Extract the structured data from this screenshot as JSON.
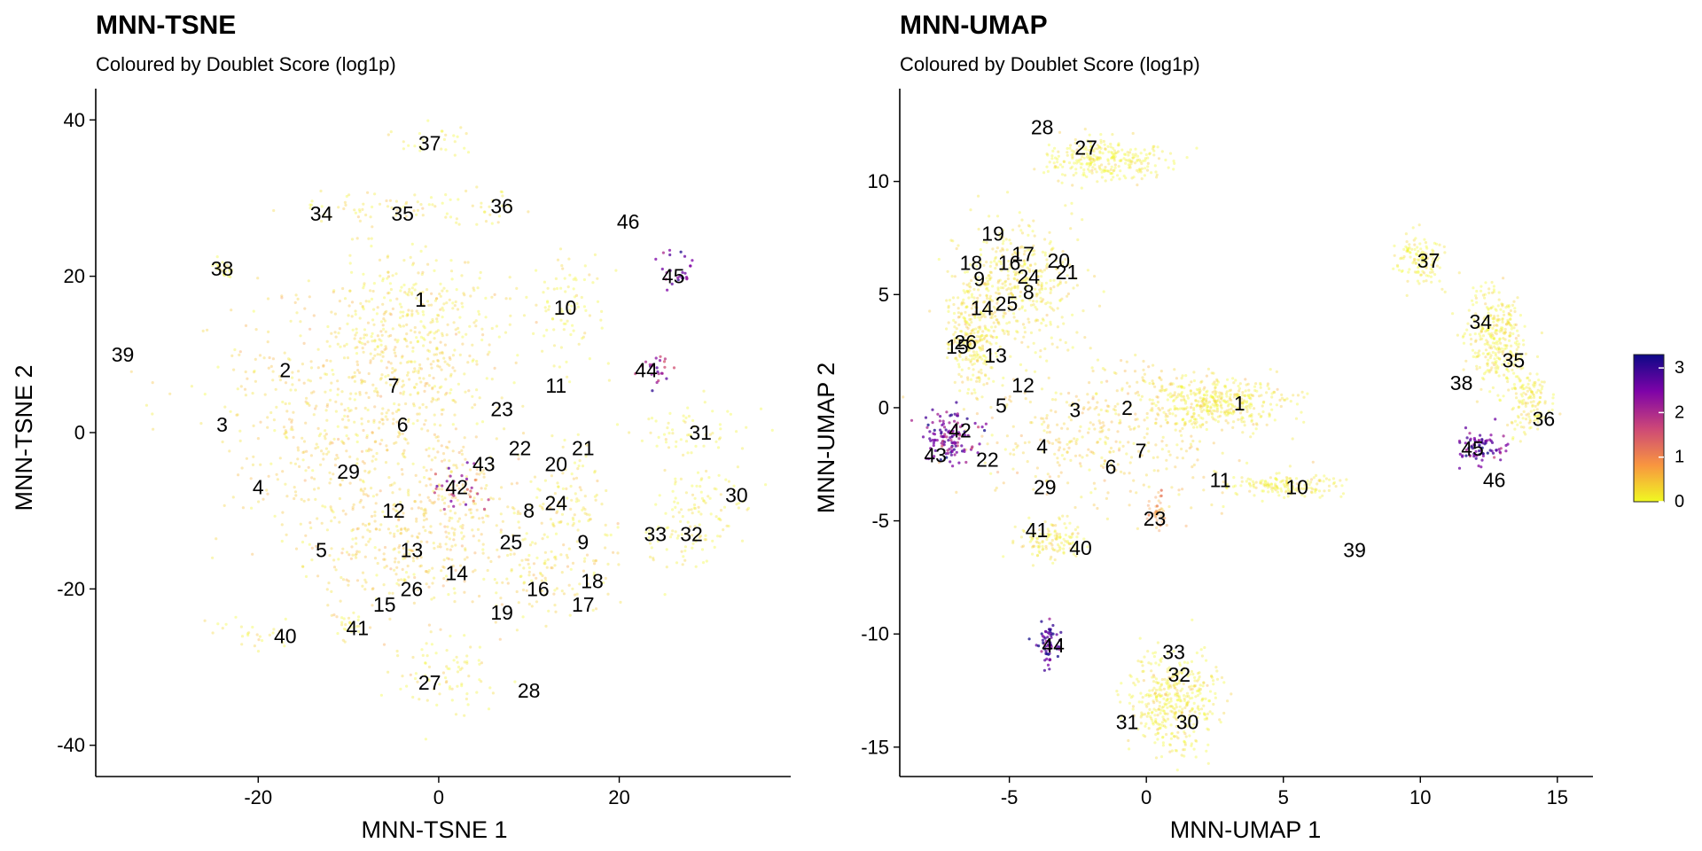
{
  "chart_data": [
    {
      "type": "scatter",
      "title": "MNN-TSNE",
      "subtitle": "Coloured by Doublet Score (log1p)",
      "xlabel": "MNN-TSNE 1",
      "ylabel": "MNN-TSNE 2",
      "xlim": [
        -38,
        39
      ],
      "ylim": [
        -44,
        44
      ],
      "xticks": [
        -20,
        0,
        20
      ],
      "yticks": [
        -40,
        -20,
        0,
        20,
        40
      ],
      "grid": false,
      "regions": [
        {
          "cx": -13,
          "cy": 2,
          "rx": 11,
          "ry": 15,
          "score": 0.35
        },
        {
          "cx": -3,
          "cy": 9,
          "rx": 9,
          "ry": 12,
          "score": 0.3
        },
        {
          "cx": -5,
          "cy": -14,
          "rx": 8,
          "ry": 9,
          "score": 0.4
        },
        {
          "cx": -2,
          "cy": 16,
          "rx": 8,
          "ry": 6,
          "score": 0.1
        },
        {
          "cx": 2,
          "cy": -10,
          "rx": 6,
          "ry": 10,
          "score": 0.4
        },
        {
          "cx": 12,
          "cy": -17,
          "rx": 7,
          "ry": 6,
          "score": 0.3
        },
        {
          "cx": 14,
          "cy": -8,
          "rx": 5,
          "ry": 6,
          "score": 0.2
        },
        {
          "cx": 14,
          "cy": 16,
          "rx": 4,
          "ry": 7,
          "score": 0.15
        },
        {
          "cx": 28,
          "cy": 0,
          "rx": 6,
          "ry": 3,
          "score": 0.05
        },
        {
          "cx": 30,
          "cy": -9,
          "rx": 4,
          "ry": 5,
          "score": 0.1
        },
        {
          "cx": 27,
          "cy": -13,
          "rx": 4,
          "ry": 5,
          "score": 0.1
        },
        {
          "cx": -1,
          "cy": 37,
          "rx": 4,
          "ry": 2,
          "score": 0.1
        },
        {
          "cx": -7,
          "cy": 29,
          "rx": 9,
          "ry": 2,
          "score": 0.2
        },
        {
          "cx": 5,
          "cy": 29,
          "rx": 4,
          "ry": 2,
          "score": 0.1
        },
        {
          "cx": -24,
          "cy": 21,
          "rx": 1,
          "ry": 1,
          "score": 0.05
        },
        {
          "cx": -21,
          "cy": -26,
          "rx": 4,
          "ry": 2,
          "score": 0.1
        },
        {
          "cx": -10,
          "cy": -25,
          "rx": 2,
          "ry": 2,
          "score": 0.1
        },
        {
          "cx": 1,
          "cy": -31,
          "rx": 6,
          "ry": 4,
          "score": 0.15
        },
        {
          "cx": 24,
          "cy": 8,
          "rx": 2,
          "ry": 2,
          "score": 2.2
        },
        {
          "cx": 26,
          "cy": 21,
          "rx": 2,
          "ry": 3,
          "score": 2.5
        },
        {
          "cx": 2,
          "cy": -7,
          "rx": 3,
          "ry": 3,
          "score": 2.0
        }
      ],
      "clusters": [
        {
          "label": "1",
          "x": -2,
          "y": 17
        },
        {
          "label": "2",
          "x": -17,
          "y": 8
        },
        {
          "label": "3",
          "x": -24,
          "y": 1
        },
        {
          "label": "4",
          "x": -20,
          "y": -7
        },
        {
          "label": "5",
          "x": -13,
          "y": -15
        },
        {
          "label": "6",
          "x": -4,
          "y": 1
        },
        {
          "label": "7",
          "x": -5,
          "y": 6
        },
        {
          "label": "8",
          "x": 10,
          "y": -10
        },
        {
          "label": "9",
          "x": 16,
          "y": -14
        },
        {
          "label": "10",
          "x": 14,
          "y": 16
        },
        {
          "label": "11",
          "x": 13,
          "y": 6
        },
        {
          "label": "12",
          "x": -5,
          "y": -10
        },
        {
          "label": "13",
          "x": -3,
          "y": -15
        },
        {
          "label": "14",
          "x": 2,
          "y": -18
        },
        {
          "label": "15",
          "x": -6,
          "y": -22
        },
        {
          "label": "16",
          "x": 11,
          "y": -20
        },
        {
          "label": "17",
          "x": 16,
          "y": -22
        },
        {
          "label": "18",
          "x": 17,
          "y": -19
        },
        {
          "label": "19",
          "x": 7,
          "y": -23
        },
        {
          "label": "20",
          "x": 13,
          "y": -4
        },
        {
          "label": "21",
          "x": 16,
          "y": -2
        },
        {
          "label": "22",
          "x": 9,
          "y": -2
        },
        {
          "label": "23",
          "x": 7,
          "y": 3
        },
        {
          "label": "24",
          "x": 13,
          "y": -9
        },
        {
          "label": "25",
          "x": 8,
          "y": -14
        },
        {
          "label": "26",
          "x": -3,
          "y": -20
        },
        {
          "label": "27",
          "x": -1,
          "y": -32
        },
        {
          "label": "28",
          "x": 10,
          "y": -33
        },
        {
          "label": "29",
          "x": -10,
          "y": -5
        },
        {
          "label": "30",
          "x": 33,
          "y": -8
        },
        {
          "label": "31",
          "x": 29,
          "y": 0
        },
        {
          "label": "32",
          "x": 28,
          "y": -13
        },
        {
          "label": "33",
          "x": 24,
          "y": -13
        },
        {
          "label": "34",
          "x": -13,
          "y": 28
        },
        {
          "label": "35",
          "x": -4,
          "y": 28
        },
        {
          "label": "36",
          "x": 7,
          "y": 29
        },
        {
          "label": "37",
          "x": -1,
          "y": 37
        },
        {
          "label": "38",
          "x": -24,
          "y": 21
        },
        {
          "label": "39",
          "x": -35,
          "y": 10
        },
        {
          "label": "40",
          "x": -17,
          "y": -26
        },
        {
          "label": "41",
          "x": -9,
          "y": -25
        },
        {
          "label": "42",
          "x": 2,
          "y": -7
        },
        {
          "label": "43",
          "x": 5,
          "y": -4
        },
        {
          "label": "44",
          "x": 23,
          "y": 8
        },
        {
          "label": "45",
          "x": 26,
          "y": 20
        },
        {
          "label": "46",
          "x": 21,
          "y": 27
        }
      ]
    },
    {
      "type": "scatter",
      "title": "MNN-UMAP",
      "subtitle": "Coloured by Doublet Score (log1p)",
      "xlabel": "MNN-UMAP 1",
      "ylabel": "MNN-UMAP 2",
      "xlim": [
        -9.0,
        16.3
      ],
      "ylim": [
        -16.3,
        14.1
      ],
      "xticks": [
        -5,
        0,
        5,
        10,
        15
      ],
      "yticks": [
        -15,
        -10,
        -5,
        0,
        5,
        10
      ],
      "grid": false,
      "colorbar": {
        "ticks": [
          0,
          1,
          2,
          3
        ],
        "min": 0,
        "max": 3.3
      },
      "regions": [
        {
          "cx": -1.5,
          "cy": -1.0,
          "rx": 4.5,
          "ry": 3.0,
          "score": 0.35
        },
        {
          "cx": 2.5,
          "cy": 0.2,
          "rx": 2.5,
          "ry": 1.0,
          "score": 0.1
        },
        {
          "cx": -4.8,
          "cy": 5.5,
          "rx": 2.0,
          "ry": 2.5,
          "score": 0.2
        },
        {
          "cx": -6.3,
          "cy": 3.0,
          "rx": 0.8,
          "ry": 2.0,
          "score": 0.2
        },
        {
          "cx": -1.5,
          "cy": 11.0,
          "rx": 2.0,
          "ry": 0.9,
          "score": 0.05
        },
        {
          "cx": 5.0,
          "cy": -3.4,
          "rx": 2.0,
          "ry": 0.5,
          "score": 0.1
        },
        {
          "cx": -3.5,
          "cy": -5.8,
          "rx": 1.0,
          "ry": 0.8,
          "score": 0.1
        },
        {
          "cx": 1.0,
          "cy": -13.0,
          "rx": 1.5,
          "ry": 2.0,
          "score": 0.1
        },
        {
          "cx": 10.0,
          "cy": 6.5,
          "rx": 0.8,
          "ry": 1.0,
          "score": 0.05
        },
        {
          "cx": 12.8,
          "cy": 3.0,
          "rx": 1.0,
          "ry": 2.0,
          "score": 0.1
        },
        {
          "cx": 14.0,
          "cy": 0.2,
          "rx": 0.7,
          "ry": 1.2,
          "score": 0.1
        },
        {
          "cx": 0.4,
          "cy": -4.5,
          "rx": 0.3,
          "ry": 0.9,
          "score": 0.8
        },
        {
          "cx": -7.2,
          "cy": -1.3,
          "rx": 0.8,
          "ry": 1.0,
          "score": 2.5
        },
        {
          "cx": 12.3,
          "cy": -1.7,
          "rx": 0.8,
          "ry": 0.6,
          "score": 2.6
        },
        {
          "cx": -3.6,
          "cy": -10.5,
          "rx": 0.4,
          "ry": 1.0,
          "score": 2.8
        }
      ],
      "clusters": [
        {
          "label": "1",
          "x": 3.4,
          "y": 0.2
        },
        {
          "label": "2",
          "x": -0.7,
          "y": 0.0
        },
        {
          "label": "3",
          "x": -2.6,
          "y": -0.1
        },
        {
          "label": "4",
          "x": -3.8,
          "y": -1.7
        },
        {
          "label": "5",
          "x": -5.3,
          "y": 0.1
        },
        {
          "label": "6",
          "x": -1.3,
          "y": -2.6
        },
        {
          "label": "7",
          "x": -0.2,
          "y": -1.9
        },
        {
          "label": "8",
          "x": -4.3,
          "y": 5.1
        },
        {
          "label": "9",
          "x": -6.1,
          "y": 5.7
        },
        {
          "label": "10",
          "x": 5.5,
          "y": -3.5
        },
        {
          "label": "11",
          "x": 2.7,
          "y": -3.2
        },
        {
          "label": "12",
          "x": -4.5,
          "y": 1.0
        },
        {
          "label": "13",
          "x": -5.5,
          "y": 2.3
        },
        {
          "label": "14",
          "x": -6.0,
          "y": 4.4
        },
        {
          "label": "15",
          "x": -6.9,
          "y": 2.7
        },
        {
          "label": "16",
          "x": -5.0,
          "y": 6.4
        },
        {
          "label": "17",
          "x": -4.5,
          "y": 6.8
        },
        {
          "label": "18",
          "x": -6.4,
          "y": 6.4
        },
        {
          "label": "19",
          "x": -5.6,
          "y": 7.7
        },
        {
          "label": "20",
          "x": -3.2,
          "y": 6.5
        },
        {
          "label": "21",
          "x": -2.9,
          "y": 6.0
        },
        {
          "label": "22",
          "x": -5.8,
          "y": -2.3
        },
        {
          "label": "23",
          "x": 0.3,
          "y": -4.9
        },
        {
          "label": "24",
          "x": -4.3,
          "y": 5.8
        },
        {
          "label": "25",
          "x": -5.1,
          "y": 4.6
        },
        {
          "label": "26",
          "x": -6.6,
          "y": 2.9
        },
        {
          "label": "27",
          "x": -2.2,
          "y": 11.5
        },
        {
          "label": "28",
          "x": -3.8,
          "y": 12.4
        },
        {
          "label": "29",
          "x": -3.7,
          "y": -3.5
        },
        {
          "label": "30",
          "x": 1.5,
          "y": -13.9
        },
        {
          "label": "31",
          "x": -0.7,
          "y": -13.9
        },
        {
          "label": "32",
          "x": 1.2,
          "y": -11.8
        },
        {
          "label": "33",
          "x": 1.0,
          "y": -10.8
        },
        {
          "label": "34",
          "x": 12.2,
          "y": 3.8
        },
        {
          "label": "35",
          "x": 13.4,
          "y": 2.1
        },
        {
          "label": "36",
          "x": 14.5,
          "y": -0.5
        },
        {
          "label": "37",
          "x": 10.3,
          "y": 6.5
        },
        {
          "label": "38",
          "x": 11.5,
          "y": 1.1
        },
        {
          "label": "39",
          "x": 7.6,
          "y": -6.3
        },
        {
          "label": "40",
          "x": -2.4,
          "y": -6.2
        },
        {
          "label": "41",
          "x": -4.0,
          "y": -5.4
        },
        {
          "label": "42",
          "x": -6.8,
          "y": -1.0
        },
        {
          "label": "43",
          "x": -7.7,
          "y": -2.1
        },
        {
          "label": "44",
          "x": -3.4,
          "y": -10.5
        },
        {
          "label": "45",
          "x": 11.9,
          "y": -1.8
        },
        {
          "label": "46",
          "x": 12.7,
          "y": -3.2
        }
      ]
    }
  ]
}
